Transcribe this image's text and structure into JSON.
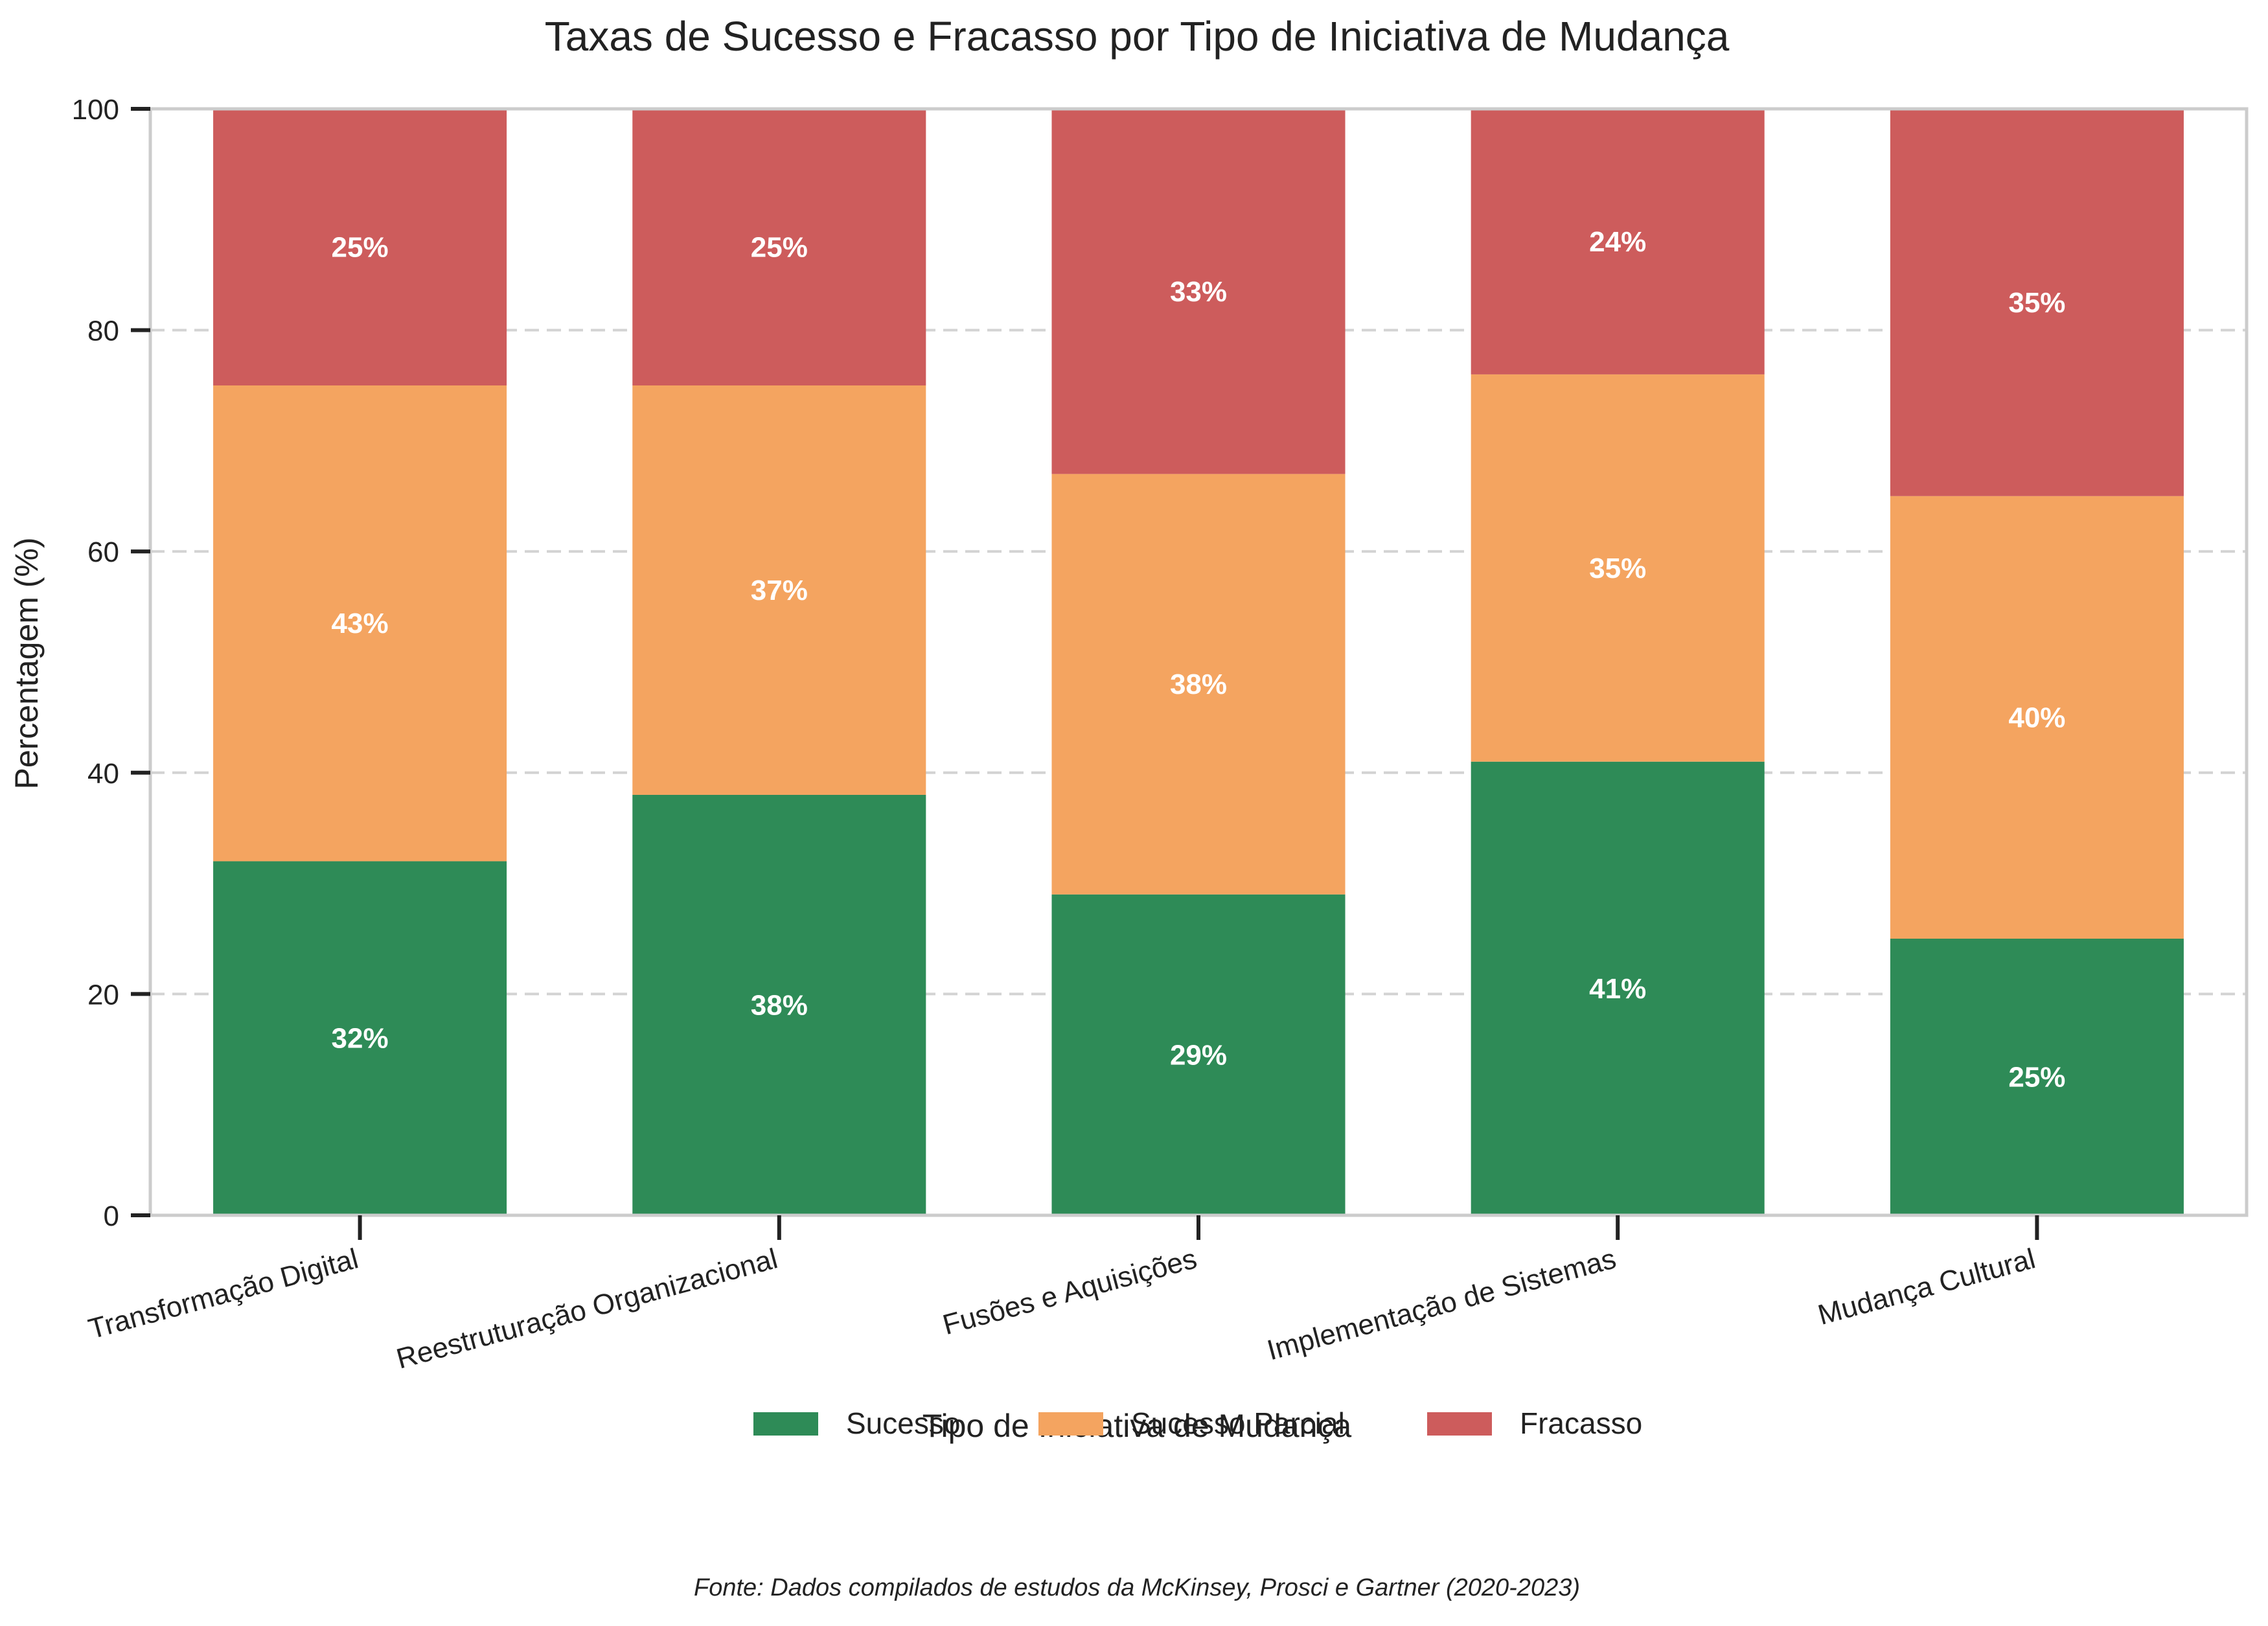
{
  "chart_data": {
    "type": "bar",
    "stacked": true,
    "title": "Taxas de Sucesso e Fracasso por Tipo de Iniciativa de Mudança",
    "xlabel": "Tipo de Iniciativa de Mudança",
    "ylabel": "Percentagem (%)",
    "ylim": [
      0,
      100
    ],
    "yticks": [
      "0",
      "20",
      "40",
      "60",
      "80",
      "100"
    ],
    "grid": "horizontal dashed",
    "legend_position": "bottom-center",
    "categories": [
      "Transformação Digital",
      "Reestruturação Organizacional",
      "Fusões e Aquisições",
      "Implementação de Sistemas",
      "Mudança Cultural"
    ],
    "series": [
      {
        "name": "Sucesso",
        "color": "#2e8b57",
        "values": [
          32,
          38,
          29,
          41,
          25
        ],
        "labels": [
          "32%",
          "38%",
          "29%",
          "41%",
          "25%"
        ]
      },
      {
        "name": "Sucesso Parcial",
        "color": "#f4a460",
        "values": [
          43,
          37,
          38,
          35,
          40
        ],
        "labels": [
          "43%",
          "37%",
          "38%",
          "35%",
          "40%"
        ]
      },
      {
        "name": "Fracasso",
        "color": "#cd5c5c",
        "values": [
          25,
          25,
          33,
          24,
          35
        ],
        "labels": [
          "25%",
          "25%",
          "33%",
          "24%",
          "35%"
        ]
      }
    ],
    "source_note": "Fonte: Dados compilados de estudos da McKinsey, Prosci e Gartner (2020-2023)"
  }
}
